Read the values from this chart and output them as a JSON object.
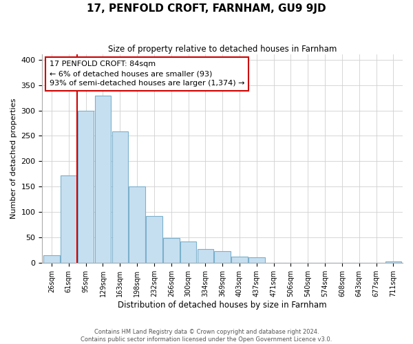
{
  "title": "17, PENFOLD CROFT, FARNHAM, GU9 9JD",
  "subtitle": "Size of property relative to detached houses in Farnham",
  "xlabel": "Distribution of detached houses by size in Farnham",
  "ylabel": "Number of detached properties",
  "bin_labels": [
    "26sqm",
    "61sqm",
    "95sqm",
    "129sqm",
    "163sqm",
    "198sqm",
    "232sqm",
    "266sqm",
    "300sqm",
    "334sqm",
    "369sqm",
    "403sqm",
    "437sqm",
    "471sqm",
    "506sqm",
    "540sqm",
    "574sqm",
    "608sqm",
    "643sqm",
    "677sqm",
    "711sqm"
  ],
  "bar_heights": [
    15,
    172,
    300,
    329,
    259,
    151,
    93,
    49,
    42,
    27,
    23,
    13,
    11,
    0,
    0,
    0,
    0,
    0,
    0,
    0,
    3
  ],
  "bar_color": "#c6dff0",
  "bar_edge_color": "#7ab0cc",
  "highlight_line_color": "#cc0000",
  "annotation_text_line1": "17 PENFOLD CROFT: 84sqm",
  "annotation_text_line2": "← 6% of detached houses are smaller (93)",
  "annotation_text_line3": "93% of semi-detached houses are larger (1,374) →",
  "annotation_box_color": "#ffffff",
  "annotation_box_edge_color": "#cc0000",
  "ylim": [
    0,
    410
  ],
  "yticks": [
    0,
    50,
    100,
    150,
    200,
    250,
    300,
    350,
    400
  ],
  "footer_text": "Contains HM Land Registry data © Crown copyright and database right 2024.\nContains public sector information licensed under the Open Government Licence v3.0.",
  "background_color": "#ffffff",
  "grid_color": "#d0d0d0"
}
